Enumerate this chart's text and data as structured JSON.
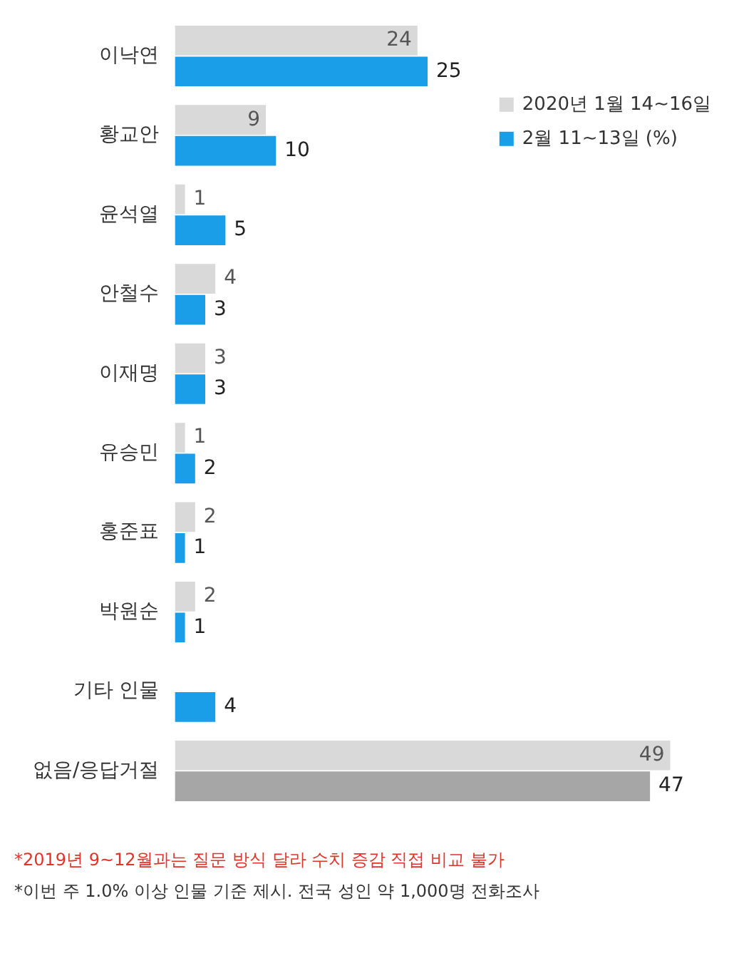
{
  "chart_data": {
    "type": "bar",
    "orientation": "horizontal",
    "categories": [
      "이낙연",
      "황교안",
      "윤석열",
      "안철수",
      "이재명",
      "유승민",
      "홍준표",
      "박원순",
      "기타 인물",
      "없음/응답거절"
    ],
    "series": [
      {
        "name": "2020년 1월 14~16일",
        "color": "#d9d9d9",
        "colors": [
          "#d9d9d9",
          "#d9d9d9",
          "#d9d9d9",
          "#d9d9d9",
          "#d9d9d9",
          "#d9d9d9",
          "#d9d9d9",
          "#d9d9d9",
          "#d9d9d9",
          "#d9d9d9"
        ],
        "values": [
          24,
          9,
          1,
          4,
          3,
          1,
          2,
          2,
          null,
          49
        ]
      },
      {
        "name": "2월 11~13일 (%)",
        "color": "#1a9ee8",
        "colors": [
          "#1a9ee8",
          "#1a9ee8",
          "#1a9ee8",
          "#1a9ee8",
          "#1a9ee8",
          "#1a9ee8",
          "#1a9ee8",
          "#1a9ee8",
          "#1a9ee8",
          "#a6a6a6"
        ],
        "values": [
          25,
          10,
          5,
          3,
          3,
          2,
          1,
          1,
          4,
          47
        ]
      }
    ],
    "data_labels": true,
    "legend": "top right",
    "grid": false,
    "tick_labels": "y",
    "annotations": [
      "*2019년 9~12월과는 질문 방식 달라 수치 증감 직접 비교 불가",
      "*이번 주 1.0% 이상 인물 기준 제시. 전국 성인 약 1,000명 전화조사"
    ]
  }
}
